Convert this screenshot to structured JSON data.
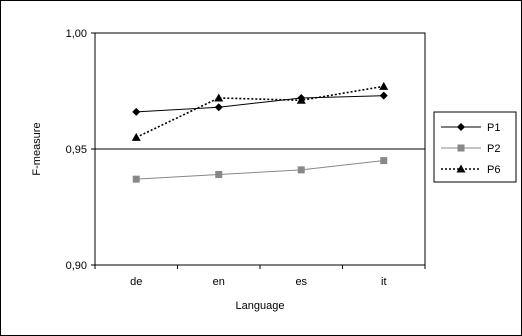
{
  "chart_data": {
    "type": "line",
    "title": "",
    "xlabel": "Language",
    "ylabel": "F-measure",
    "categories": [
      "de",
      "en",
      "es",
      "it"
    ],
    "ylim": [
      0.9,
      1.0
    ],
    "yticks": [
      0.9,
      0.95,
      1.0
    ],
    "ytick_labels": [
      "0,90",
      "0,95",
      "1,00"
    ],
    "grid": "horizontal line at 0,95",
    "legend_position": "right",
    "series": [
      {
        "name": "P1",
        "values": [
          0.966,
          0.968,
          0.972,
          0.973
        ],
        "color": "#000000",
        "marker": "diamond",
        "line": "solid"
      },
      {
        "name": "P2",
        "values": [
          0.937,
          0.939,
          0.941,
          0.945
        ],
        "color": "#888888",
        "marker": "square",
        "line": "solid"
      },
      {
        "name": "P6",
        "values": [
          0.955,
          0.972,
          0.971,
          0.977
        ],
        "color": "#000000",
        "marker": "triangle",
        "line": "dotted"
      }
    ]
  }
}
